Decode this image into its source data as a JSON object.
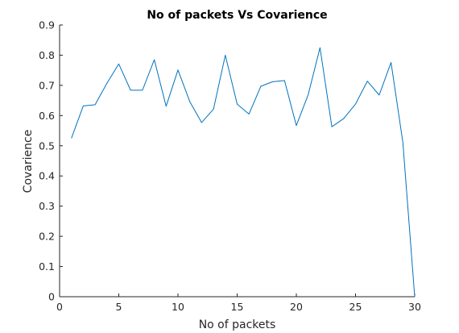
{
  "chart_data": {
    "type": "line",
    "title": "No of packets Vs Covarience",
    "xlabel": "No of packets",
    "ylabel": "Covarience",
    "xlim": [
      0,
      30
    ],
    "ylim": [
      0,
      0.9
    ],
    "xticks": [
      0,
      5,
      10,
      15,
      20,
      25,
      30
    ],
    "yticks": [
      0,
      0.1,
      0.2,
      0.3,
      0.4,
      0.5,
      0.6,
      0.7,
      0.8,
      0.9
    ],
    "xtick_labels": [
      "0",
      "5",
      "10",
      "15",
      "20",
      "25",
      "30"
    ],
    "ytick_labels": [
      "0",
      "0.1",
      "0.2",
      "0.3",
      "0.4",
      "0.5",
      "0.6",
      "0.7",
      "0.8",
      "0.9"
    ],
    "grid": false,
    "legend": null,
    "series": [
      {
        "color": "#0072bd",
        "x": [
          1,
          2,
          3,
          4,
          5,
          6,
          7,
          8,
          9,
          10,
          11,
          12,
          13,
          14,
          15,
          16,
          17,
          18,
          19,
          20,
          21,
          22,
          23,
          24,
          25,
          26,
          27,
          28,
          29,
          30
        ],
        "y": [
          0.525,
          0.632,
          0.636,
          0.707,
          0.771,
          0.684,
          0.684,
          0.785,
          0.631,
          0.751,
          0.646,
          0.577,
          0.621,
          0.8,
          0.638,
          0.605,
          0.697,
          0.712,
          0.716,
          0.567,
          0.669,
          0.825,
          0.563,
          0.59,
          0.638,
          0.714,
          0.668,
          0.776,
          0.511,
          0.0
        ]
      }
    ]
  }
}
